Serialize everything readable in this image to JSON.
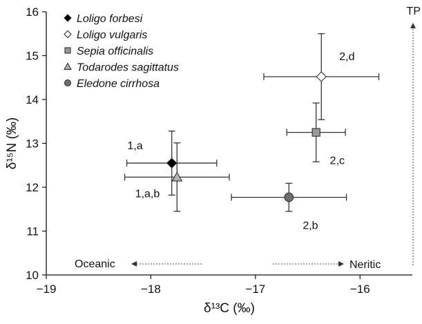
{
  "chart_data": {
    "type": "scatter",
    "xlabel": "δ¹³C (‰)",
    "ylabel": "δ¹⁵N (‰)",
    "xlim": [
      -19,
      -15.5
    ],
    "ylim": [
      10,
      16
    ],
    "xticks": [
      -19,
      -18,
      -17,
      -16
    ],
    "xtick_labels": [
      "−19",
      "−18",
      "−17",
      "−16"
    ],
    "yticks": [
      10,
      11,
      12,
      13,
      14,
      15,
      16
    ],
    "ytick_labels": [
      "10",
      "11",
      "12",
      "13",
      "14",
      "15",
      "16"
    ],
    "grid": false,
    "legend_position": "top-left",
    "series": [
      {
        "name": "Loligo forbesi",
        "marker": "diamond",
        "fill": "#000000",
        "x": -17.8,
        "y": 12.55,
        "xerr": 0.43,
        "yerr": 0.73,
        "group_label": "1,a",
        "group_label_position": "upper-left"
      },
      {
        "name": "Loligo vulgaris",
        "marker": "diamond",
        "fill": "#ffffff",
        "x": -16.37,
        "y": 14.52,
        "xerr": 0.55,
        "yerr": 0.98,
        "group_label": "2,d",
        "group_label_position": "upper-right"
      },
      {
        "name": "Sepia officinalis",
        "marker": "square",
        "fill": "#9a9a9a",
        "x": -16.42,
        "y": 13.25,
        "xerr": 0.28,
        "yerr": 0.67,
        "group_label": "2,c",
        "group_label_position": "lower-right"
      },
      {
        "name": "Todarodes sagittatus",
        "marker": "triangle",
        "fill": "#b2b2b2",
        "x": -17.75,
        "y": 12.23,
        "xerr": 0.5,
        "yerr": 0.78,
        "group_label": "1,a,b",
        "group_label_position": "lower-left"
      },
      {
        "name": "Eledone cirrhosa",
        "marker": "circle",
        "fill": "#6e6e6e",
        "x": -16.68,
        "y": 11.77,
        "xerr": 0.55,
        "yerr": 0.32,
        "group_label": "2,b",
        "group_label_position": "lower-right"
      }
    ],
    "annotations": {
      "left_arrow": "Oceanic",
      "right_arrow": "Neritic",
      "top_arrow": "TP"
    }
  }
}
